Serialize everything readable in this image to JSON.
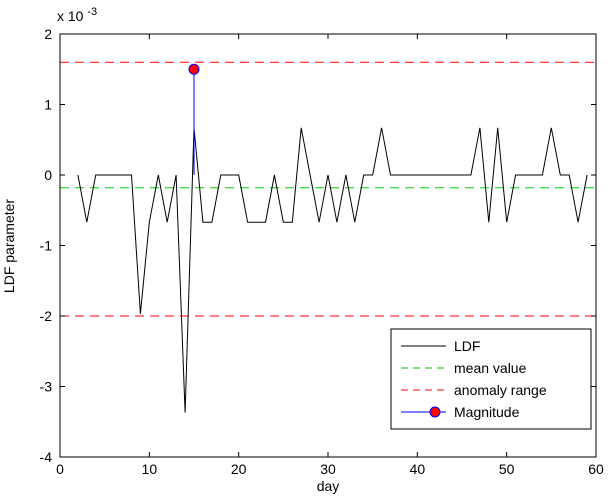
{
  "chart_data": {
    "type": "line",
    "title": "",
    "xlabel": "day",
    "ylabel": "LDF parameter",
    "scale_note": "x 10",
    "scale_exponent": "-3",
    "xlim": [
      0,
      60
    ],
    "ylim": [
      -0.004,
      0.002
    ],
    "xticks": [
      0,
      10,
      20,
      30,
      40,
      50,
      60
    ],
    "yticks": [
      -0.004,
      -0.003,
      -0.002,
      -0.001,
      0,
      0.001,
      0.002
    ],
    "xtick_labels": [
      "0",
      "10",
      "20",
      "30",
      "40",
      "50",
      "60"
    ],
    "ytick_labels": [
      "-4",
      "-3",
      "-2",
      "-1",
      "0",
      "1",
      "2"
    ],
    "grid": false,
    "legend_position": "bottom-right",
    "series": [
      {
        "name": "LDF",
        "style": "solid",
        "color": "#000000",
        "x": [
          2,
          3,
          4,
          5,
          6,
          7,
          8,
          9,
          10,
          11,
          12,
          13,
          14,
          15,
          16,
          17,
          18,
          19,
          20,
          21,
          22,
          23,
          24,
          25,
          26,
          27,
          28,
          29,
          30,
          31,
          32,
          33,
          34,
          35,
          36,
          37,
          38,
          39,
          40,
          41,
          42,
          43,
          44,
          45,
          46,
          47,
          48,
          49,
          50,
          51,
          52,
          53,
          54,
          55,
          56,
          57,
          58,
          59
        ],
        "y": [
          0,
          -0.00067,
          0,
          0,
          0,
          0,
          0,
          -0.00197,
          -0.00067,
          0,
          -0.00067,
          0,
          -0.00337,
          0.00067,
          -0.00067,
          -0.00067,
          0,
          0,
          0,
          -0.00067,
          -0.00067,
          -0.00067,
          0,
          -0.00067,
          -0.00067,
          0.00067,
          0,
          -0.00067,
          0,
          -0.00067,
          0,
          -0.00067,
          0,
          0,
          0.00067,
          0,
          0,
          0,
          0,
          0,
          0,
          0,
          0,
          0,
          0,
          0.00067,
          -0.00067,
          0.00067,
          -0.00067,
          0,
          0,
          0,
          0,
          0.00067,
          0,
          0,
          -0.00067,
          0
        ]
      },
      {
        "name": "mean value",
        "style": "dashed",
        "color": "#00cc00",
        "y": -0.00018
      },
      {
        "name": "anomaly range",
        "style": "dashed",
        "color": "#ff0000",
        "y": [
          -0.002,
          0.0016
        ]
      },
      {
        "name": "Magnitude",
        "style": "stem",
        "color": "#0000ff",
        "marker_color": "#ff0000",
        "x": 15,
        "y": 0.0015
      }
    ]
  }
}
